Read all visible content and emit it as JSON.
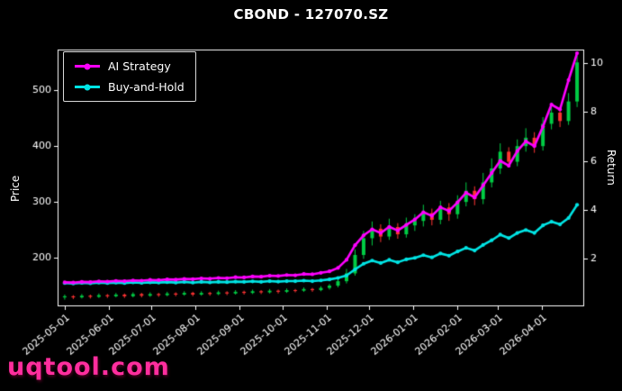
{
  "watermark": {
    "text": "uqtool.com",
    "color": "#ff2e9e"
  },
  "chart_data": {
    "type": "candlestick+line",
    "title": "CBOND - 127070.SZ",
    "ylabel_left": "Price",
    "ylabel_right": "Return",
    "background": "#000000",
    "text_color": "#ffffff",
    "legend_position": "upper-left",
    "price_axis": {
      "ticks": [
        200,
        300,
        400,
        500
      ],
      "min": 113,
      "max": 573
    },
    "return_axis": {
      "ticks": [
        2,
        4,
        6,
        8,
        10
      ],
      "min": 0.05,
      "max": 10.55
    },
    "x_ticks": [
      "2025-05-01",
      "2025-06-01",
      "2025-07-01",
      "2025-08-01",
      "2025-09-01",
      "2025-10-01",
      "2025-11-01",
      "2025-12-01",
      "2026-01-01",
      "2026-02-01",
      "2026-03-01",
      "2026-04-01"
    ],
    "candle_colors": {
      "up": "#00cc44",
      "down": "#ff3333"
    },
    "dates": [
      "2025-05-01",
      "2025-05-07",
      "2025-05-13",
      "2025-05-19",
      "2025-05-25",
      "2025-05-31",
      "2025-06-06",
      "2025-06-12",
      "2025-06-18",
      "2025-06-24",
      "2025-06-30",
      "2025-07-06",
      "2025-07-12",
      "2025-07-18",
      "2025-07-24",
      "2025-07-30",
      "2025-08-05",
      "2025-08-11",
      "2025-08-17",
      "2025-08-23",
      "2025-08-29",
      "2025-09-04",
      "2025-09-10",
      "2025-09-16",
      "2025-09-22",
      "2025-09-28",
      "2025-10-04",
      "2025-10-10",
      "2025-10-16",
      "2025-10-22",
      "2025-10-28",
      "2025-11-03",
      "2025-11-09",
      "2025-11-15",
      "2025-11-21",
      "2025-11-27",
      "2025-12-03",
      "2025-12-09",
      "2025-12-15",
      "2025-12-21",
      "2025-12-27",
      "2026-01-02",
      "2026-01-08",
      "2026-01-14",
      "2026-01-20",
      "2026-01-26",
      "2026-02-01",
      "2026-02-07",
      "2026-02-13",
      "2026-02-19",
      "2026-02-25",
      "2026-03-03",
      "2026-03-09",
      "2026-03-15",
      "2026-03-21",
      "2026-03-27",
      "2026-04-02",
      "2026-04-08",
      "2026-04-14",
      "2026-04-20",
      "2026-04-26"
    ],
    "candles": [
      [
        129,
        134,
        125,
        131
      ],
      [
        131,
        133,
        126,
        129
      ],
      [
        129,
        135,
        127,
        132
      ],
      [
        132,
        134,
        127,
        130
      ],
      [
        130,
        136,
        128,
        133
      ],
      [
        133,
        135,
        128,
        131
      ],
      [
        131,
        137,
        129,
        134
      ],
      [
        134,
        136,
        128,
        131
      ],
      [
        131,
        138,
        129,
        135
      ],
      [
        135,
        137,
        129,
        132
      ],
      [
        132,
        138,
        130,
        135
      ],
      [
        135,
        137,
        130,
        133
      ],
      [
        133,
        139,
        131,
        136
      ],
      [
        136,
        138,
        131,
        134
      ],
      [
        134,
        140,
        132,
        137
      ],
      [
        137,
        139,
        131,
        134
      ],
      [
        134,
        140,
        132,
        137
      ],
      [
        137,
        139,
        132,
        135
      ],
      [
        135,
        141,
        133,
        138
      ],
      [
        138,
        140,
        133,
        136
      ],
      [
        136,
        142,
        134,
        139
      ],
      [
        139,
        141,
        134,
        137
      ],
      [
        137,
        143,
        135,
        140
      ],
      [
        140,
        142,
        135,
        138
      ],
      [
        138,
        144,
        136,
        141
      ],
      [
        141,
        143,
        136,
        139
      ],
      [
        139,
        145,
        137,
        142
      ],
      [
        142,
        144,
        138,
        141
      ],
      [
        141,
        147,
        139,
        144
      ],
      [
        144,
        146,
        139,
        142
      ],
      [
        142,
        149,
        140,
        146
      ],
      [
        146,
        153,
        143,
        150
      ],
      [
        150,
        163,
        147,
        158
      ],
      [
        158,
        180,
        154,
        172
      ],
      [
        172,
        215,
        168,
        205
      ],
      [
        205,
        248,
        198,
        235
      ],
      [
        235,
        265,
        222,
        252
      ],
      [
        252,
        260,
        228,
        238
      ],
      [
        238,
        270,
        232,
        255
      ],
      [
        255,
        262,
        234,
        242
      ],
      [
        242,
        272,
        236,
        258
      ],
      [
        258,
        278,
        248,
        266
      ],
      [
        266,
        295,
        256,
        280
      ],
      [
        280,
        288,
        258,
        268
      ],
      [
        268,
        302,
        260,
        290
      ],
      [
        290,
        298,
        266,
        278
      ],
      [
        278,
        312,
        270,
        300
      ],
      [
        300,
        335,
        292,
        320
      ],
      [
        320,
        328,
        294,
        305
      ],
      [
        305,
        352,
        296,
        335
      ],
      [
        335,
        378,
        326,
        360
      ],
      [
        360,
        405,
        350,
        390
      ],
      [
        390,
        398,
        362,
        372
      ],
      [
        372,
        412,
        364,
        400
      ],
      [
        400,
        432,
        390,
        415
      ],
      [
        415,
        425,
        388,
        400
      ],
      [
        400,
        452,
        392,
        440
      ],
      [
        440,
        478,
        430,
        460
      ],
      [
        460,
        470,
        434,
        445
      ],
      [
        445,
        495,
        438,
        480
      ],
      [
        480,
        562,
        470,
        550
      ]
    ],
    "series": [
      {
        "name": "AI Strategy",
        "color": "#ff00ff",
        "axis": "return",
        "values": [
          1.03,
          1.02,
          1.05,
          1.04,
          1.07,
          1.06,
          1.09,
          1.08,
          1.11,
          1.1,
          1.13,
          1.12,
          1.15,
          1.14,
          1.17,
          1.16,
          1.19,
          1.18,
          1.21,
          1.2,
          1.24,
          1.23,
          1.27,
          1.26,
          1.3,
          1.29,
          1.33,
          1.32,
          1.37,
          1.36,
          1.42,
          1.48,
          1.62,
          1.95,
          2.55,
          2.95,
          3.2,
          3.05,
          3.3,
          3.15,
          3.38,
          3.6,
          3.9,
          3.75,
          4.1,
          3.95,
          4.3,
          4.7,
          4.5,
          5.0,
          5.5,
          6.0,
          5.8,
          6.4,
          6.8,
          6.6,
          7.4,
          8.3,
          8.1,
          9.3,
          10.4
        ]
      },
      {
        "name": "Buy-and-Hold",
        "color": "#00e5e5",
        "axis": "return",
        "values": [
          1.0,
          0.98,
          1.01,
          0.99,
          1.02,
          1.0,
          1.02,
          1.0,
          1.03,
          1.01,
          1.03,
          1.02,
          1.04,
          1.02,
          1.05,
          1.02,
          1.05,
          1.03,
          1.05,
          1.04,
          1.06,
          1.05,
          1.07,
          1.05,
          1.08,
          1.06,
          1.08,
          1.08,
          1.1,
          1.08,
          1.11,
          1.15,
          1.21,
          1.31,
          1.56,
          1.79,
          1.92,
          1.82,
          1.95,
          1.85,
          1.97,
          2.03,
          2.14,
          2.05,
          2.21,
          2.12,
          2.29,
          2.44,
          2.33,
          2.56,
          2.75,
          2.98,
          2.84,
          3.05,
          3.17,
          3.05,
          3.36,
          3.51,
          3.4,
          3.66,
          4.2
        ]
      }
    ]
  }
}
